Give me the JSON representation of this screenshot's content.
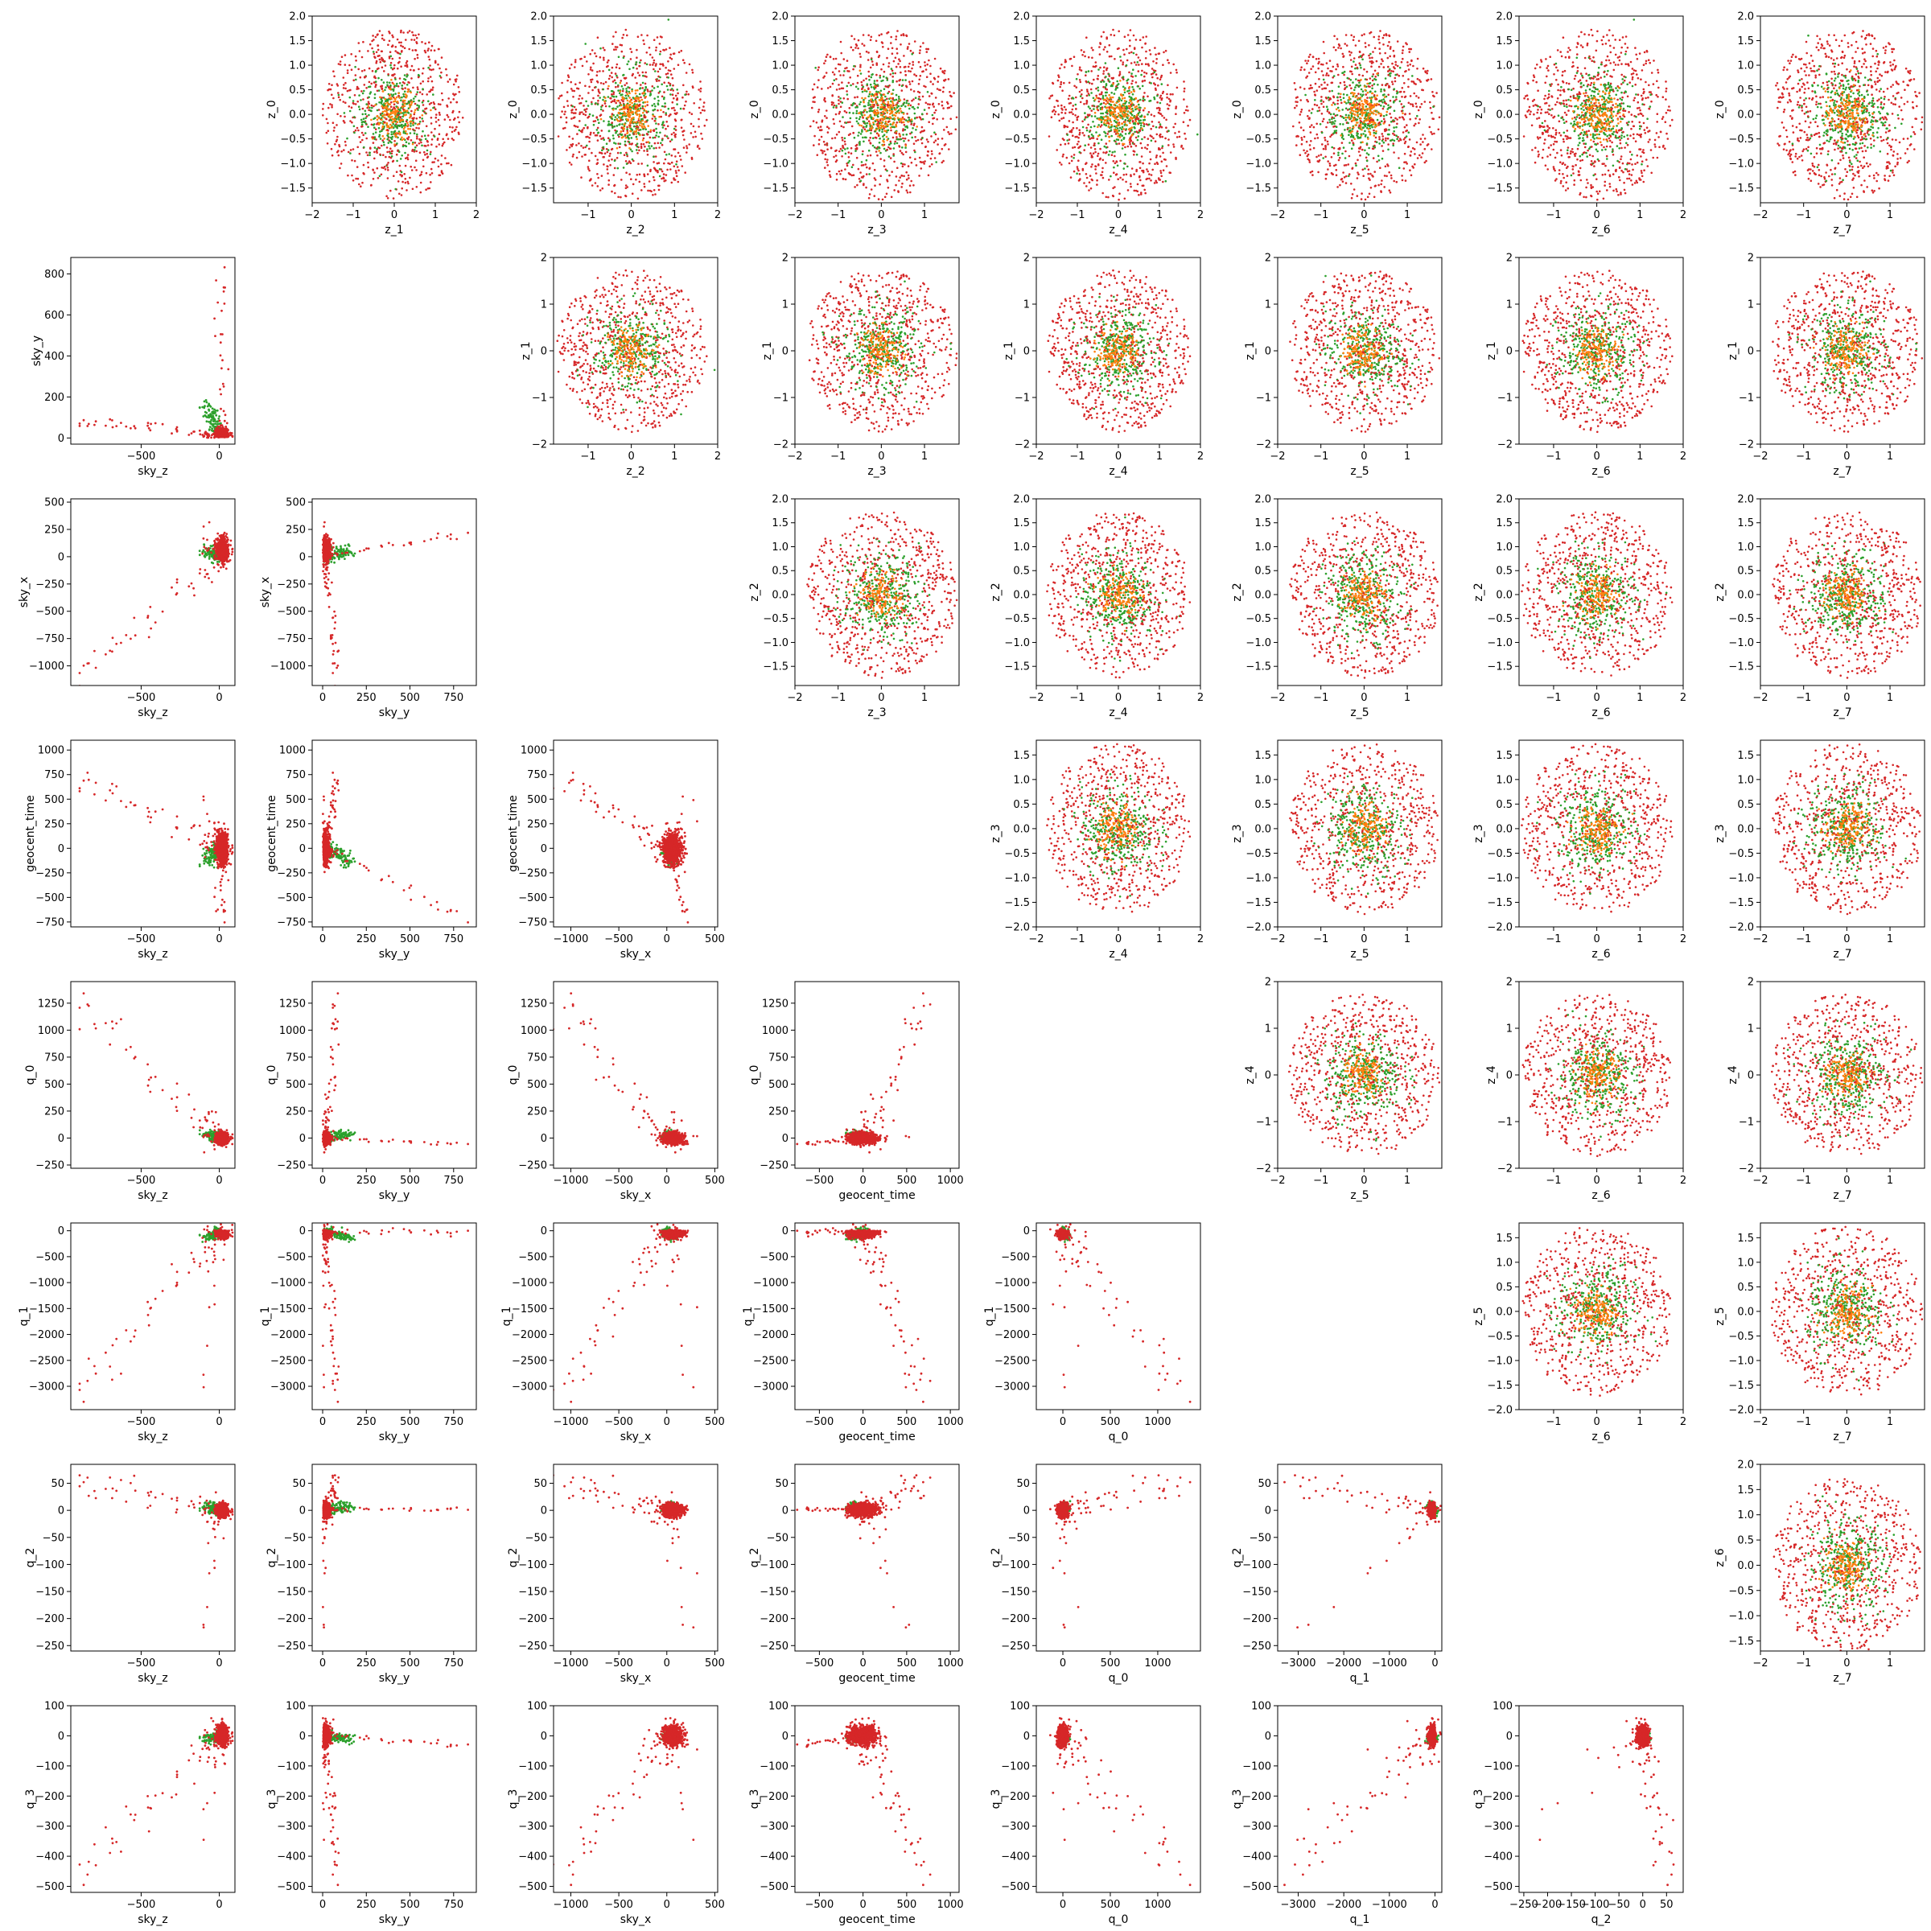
{
  "figure": {
    "title": "",
    "grid_size": 8,
    "layout": "Upper triangle: scatter of z_i (y) vs z_j (x). Lower triangle: scatter of parameter pairs. Diagonal empty."
  },
  "colors": {
    "red": "#d62728",
    "green": "#2ca02c",
    "orange": "#ff7f0e",
    "axis": "#000000"
  },
  "chart_data": {
    "type": "scatter",
    "upper_triangle": {
      "x_labels_by_col": [
        "",
        "z_1",
        "z_2",
        "z_3",
        "z_4",
        "z_5",
        "z_6",
        "z_7"
      ],
      "y_labels_by_row": [
        "z_0",
        "z_1",
        "z_2",
        "z_3",
        "z_4",
        "z_5",
        "z_6"
      ],
      "series": [
        {
          "color": "red",
          "distribution": "gaussian",
          "mean": 0,
          "std": 0.6
        },
        {
          "color": "green",
          "distribution": "gaussian",
          "mean": 0,
          "std": 0.45
        },
        {
          "color": "orange",
          "distribution": "gaussian",
          "mean": 0,
          "std": 0.25
        }
      ],
      "panels": [
        {
          "row": 0,
          "col": 1,
          "xlabel": "z_1",
          "ylabel": "z_0",
          "xlim": [
            -2.0,
            2.0
          ],
          "ylim": [
            -1.8,
            2.0
          ],
          "xticks": [
            -2,
            -1,
            0,
            1,
            2
          ],
          "yticks": [
            -1.5,
            -1.0,
            -0.5,
            0.0,
            0.5,
            1.0,
            1.5,
            2.0
          ]
        },
        {
          "row": 0,
          "col": 2,
          "xlabel": "z_2",
          "ylabel": "z_0",
          "xlim": [
            -1.8,
            2.0
          ],
          "ylim": [
            -1.8,
            2.0
          ],
          "xticks": [
            -1,
            0,
            1,
            2
          ],
          "yticks": [
            -1.5,
            -1.0,
            -0.5,
            0.0,
            0.5,
            1.0,
            1.5,
            2.0
          ]
        },
        {
          "row": 0,
          "col": 3,
          "xlabel": "z_3",
          "ylabel": "z_0",
          "xlim": [
            -2.0,
            1.8
          ],
          "ylim": [
            -1.8,
            2.0
          ],
          "xticks": [
            -2,
            -1,
            0,
            1
          ],
          "yticks": [
            -1.5,
            -1.0,
            -0.5,
            0.0,
            0.5,
            1.0,
            1.5,
            2.0
          ]
        },
        {
          "row": 0,
          "col": 4,
          "xlabel": "z_4",
          "ylabel": "z_0",
          "xlim": [
            -2.0,
            2.0
          ],
          "ylim": [
            -1.8,
            2.0
          ],
          "xticks": [
            -2,
            -1,
            0,
            1,
            2
          ],
          "yticks": [
            -1.5,
            -1.0,
            -0.5,
            0.0,
            0.5,
            1.0,
            1.5,
            2.0
          ]
        },
        {
          "row": 0,
          "col": 5,
          "xlabel": "z_5",
          "ylabel": "z_0",
          "xlim": [
            -2.0,
            1.8
          ],
          "ylim": [
            -1.8,
            2.0
          ],
          "xticks": [
            -2,
            -1,
            0,
            1
          ],
          "yticks": [
            -1.5,
            -1.0,
            -0.5,
            0.0,
            0.5,
            1.0,
            1.5,
            2.0
          ]
        },
        {
          "row": 0,
          "col": 6,
          "xlabel": "z_6",
          "ylabel": "z_0",
          "xlim": [
            -1.8,
            2.0
          ],
          "ylim": [
            -1.8,
            2.0
          ],
          "xticks": [
            -1,
            0,
            1,
            2
          ],
          "yticks": [
            -1.5,
            -1.0,
            -0.5,
            0.0,
            0.5,
            1.0,
            1.5,
            2.0
          ]
        },
        {
          "row": 0,
          "col": 7,
          "xlabel": "z_7",
          "ylabel": "z_0",
          "xlim": [
            -2.0,
            1.8
          ],
          "ylim": [
            -1.8,
            2.0
          ],
          "xticks": [
            -2,
            -1,
            0,
            1
          ],
          "yticks": [
            -1.5,
            -1.0,
            -0.5,
            0.0,
            0.5,
            1.0,
            1.5,
            2.0
          ]
        },
        {
          "row": 1,
          "col": 2,
          "xlabel": "z_2",
          "ylabel": "z_1",
          "xlim": [
            -1.8,
            2.0
          ],
          "ylim": [
            -2.0,
            2.0
          ],
          "xticks": [
            -1,
            0,
            1,
            2
          ],
          "yticks": [
            -2,
            -1,
            0,
            1,
            2
          ]
        },
        {
          "row": 1,
          "col": 3,
          "xlabel": "z_3",
          "ylabel": "z_1",
          "xlim": [
            -2.0,
            1.8
          ],
          "ylim": [
            -2.0,
            2.0
          ],
          "xticks": [
            -2,
            -1,
            0,
            1
          ],
          "yticks": [
            -2,
            -1,
            0,
            1,
            2
          ]
        },
        {
          "row": 1,
          "col": 4,
          "xlabel": "z_4",
          "ylabel": "z_1",
          "xlim": [
            -2.0,
            2.0
          ],
          "ylim": [
            -2.0,
            2.0
          ],
          "xticks": [
            -2,
            -1,
            0,
            1,
            2
          ],
          "yticks": [
            -2,
            -1,
            0,
            1,
            2
          ]
        },
        {
          "row": 1,
          "col": 5,
          "xlabel": "z_5",
          "ylabel": "z_1",
          "xlim": [
            -2.0,
            1.8
          ],
          "ylim": [
            -2.0,
            2.0
          ],
          "xticks": [
            -2,
            -1,
            0,
            1
          ],
          "yticks": [
            -2,
            -1,
            0,
            1,
            2
          ]
        },
        {
          "row": 1,
          "col": 6,
          "xlabel": "z_6",
          "ylabel": "z_1",
          "xlim": [
            -1.8,
            2.0
          ],
          "ylim": [
            -2.0,
            2.0
          ],
          "xticks": [
            -1,
            0,
            1,
            2
          ],
          "yticks": [
            -2,
            -1,
            0,
            1,
            2
          ]
        },
        {
          "row": 1,
          "col": 7,
          "xlabel": "z_7",
          "ylabel": "z_1",
          "xlim": [
            -2.0,
            1.8
          ],
          "ylim": [
            -2.0,
            2.0
          ],
          "xticks": [
            -2,
            -1,
            0,
            1
          ],
          "yticks": [
            -2,
            -1,
            0,
            1,
            2
          ]
        },
        {
          "row": 2,
          "col": 3,
          "xlabel": "z_3",
          "ylabel": "z_2",
          "xlim": [
            -2.0,
            1.8
          ],
          "ylim": [
            -1.9,
            2.0
          ],
          "xticks": [
            -2,
            -1,
            0,
            1
          ],
          "yticks": [
            -1.5,
            -1.0,
            -0.5,
            0.0,
            0.5,
            1.0,
            1.5,
            2.0
          ]
        },
        {
          "row": 2,
          "col": 4,
          "xlabel": "z_4",
          "ylabel": "z_2",
          "xlim": [
            -2.0,
            2.0
          ],
          "ylim": [
            -1.9,
            2.0
          ],
          "xticks": [
            -2,
            -1,
            0,
            1,
            2
          ],
          "yticks": [
            -1.5,
            -1.0,
            -0.5,
            0.0,
            0.5,
            1.0,
            1.5,
            2.0
          ]
        },
        {
          "row": 2,
          "col": 5,
          "xlabel": "z_5",
          "ylabel": "z_2",
          "xlim": [
            -2.0,
            1.8
          ],
          "ylim": [
            -1.9,
            2.0
          ],
          "xticks": [
            -2,
            -1,
            0,
            1
          ],
          "yticks": [
            -1.5,
            -1.0,
            -0.5,
            0.0,
            0.5,
            1.0,
            1.5,
            2.0
          ]
        },
        {
          "row": 2,
          "col": 6,
          "xlabel": "z_6",
          "ylabel": "z_2",
          "xlim": [
            -1.8,
            2.0
          ],
          "ylim": [
            -1.9,
            2.0
          ],
          "xticks": [
            -1,
            0,
            1,
            2
          ],
          "yticks": [
            -1.5,
            -1.0,
            -0.5,
            0.0,
            0.5,
            1.0,
            1.5,
            2.0
          ]
        },
        {
          "row": 2,
          "col": 7,
          "xlabel": "z_7",
          "ylabel": "z_2",
          "xlim": [
            -2.0,
            1.8
          ],
          "ylim": [
            -1.9,
            2.0
          ],
          "xticks": [
            -2,
            -1,
            0,
            1
          ],
          "yticks": [
            -1.5,
            -1.0,
            -0.5,
            0.0,
            0.5,
            1.0,
            1.5,
            2.0
          ]
        },
        {
          "row": 3,
          "col": 4,
          "xlabel": "z_4",
          "ylabel": "z_3",
          "xlim": [
            -2.0,
            2.0
          ],
          "ylim": [
            -2.0,
            1.8
          ],
          "xticks": [
            -2,
            -1,
            0,
            1,
            2
          ],
          "yticks": [
            -2.0,
            -1.5,
            -1.0,
            -0.5,
            0.0,
            0.5,
            1.0,
            1.5
          ]
        },
        {
          "row": 3,
          "col": 5,
          "xlabel": "z_5",
          "ylabel": "z_3",
          "xlim": [
            -2.0,
            1.8
          ],
          "ylim": [
            -2.0,
            1.8
          ],
          "xticks": [
            -2,
            -1,
            0,
            1
          ],
          "yticks": [
            -2.0,
            -1.5,
            -1.0,
            -0.5,
            0.0,
            0.5,
            1.0,
            1.5
          ]
        },
        {
          "row": 3,
          "col": 6,
          "xlabel": "z_6",
          "ylabel": "z_3",
          "xlim": [
            -1.8,
            2.0
          ],
          "ylim": [
            -2.0,
            1.8
          ],
          "xticks": [
            -1,
            0,
            1,
            2
          ],
          "yticks": [
            -2.0,
            -1.5,
            -1.0,
            -0.5,
            0.0,
            0.5,
            1.0,
            1.5
          ]
        },
        {
          "row": 3,
          "col": 7,
          "xlabel": "z_7",
          "ylabel": "z_3",
          "xlim": [
            -2.0,
            1.8
          ],
          "ylim": [
            -2.0,
            1.8
          ],
          "xticks": [
            -2,
            -1,
            0,
            1
          ],
          "yticks": [
            -2.0,
            -1.5,
            -1.0,
            -0.5,
            0.0,
            0.5,
            1.0,
            1.5
          ]
        },
        {
          "row": 4,
          "col": 5,
          "xlabel": "z_5",
          "ylabel": "z_4",
          "xlim": [
            -2.0,
            1.8
          ],
          "ylim": [
            -2.0,
            2.0
          ],
          "xticks": [
            -2,
            -1,
            0,
            1
          ],
          "yticks": [
            -2,
            -1,
            0,
            1,
            2
          ]
        },
        {
          "row": 4,
          "col": 6,
          "xlabel": "z_6",
          "ylabel": "z_4",
          "xlim": [
            -1.8,
            2.0
          ],
          "ylim": [
            -2.0,
            2.0
          ],
          "xticks": [
            -1,
            0,
            1,
            2
          ],
          "yticks": [
            -2,
            -1,
            0,
            1,
            2
          ]
        },
        {
          "row": 4,
          "col": 7,
          "xlabel": "z_7",
          "ylabel": "z_4",
          "xlim": [
            -2.0,
            1.8
          ],
          "ylim": [
            -2.0,
            2.0
          ],
          "xticks": [
            -2,
            -1,
            0,
            1
          ],
          "yticks": [
            -2,
            -1,
            0,
            1,
            2
          ]
        },
        {
          "row": 5,
          "col": 6,
          "xlabel": "z_6",
          "ylabel": "z_5",
          "xlim": [
            -1.8,
            2.0
          ],
          "ylim": [
            -2.0,
            1.8
          ],
          "xticks": [
            -1,
            0,
            1,
            2
          ],
          "yticks": [
            -2.0,
            -1.5,
            -1.0,
            -0.5,
            0.0,
            0.5,
            1.0,
            1.5
          ]
        },
        {
          "row": 5,
          "col": 7,
          "xlabel": "z_7",
          "ylabel": "z_5",
          "xlim": [
            -2.0,
            1.8
          ],
          "ylim": [
            -2.0,
            1.8
          ],
          "xticks": [
            -2,
            -1,
            0,
            1
          ],
          "yticks": [
            -2.0,
            -1.5,
            -1.0,
            -0.5,
            0.0,
            0.5,
            1.0,
            1.5
          ]
        },
        {
          "row": 6,
          "col": 7,
          "xlabel": "z_7",
          "ylabel": "z_6",
          "xlim": [
            -2.0,
            1.8
          ],
          "ylim": [
            -1.7,
            2.0
          ],
          "xticks": [
            -2,
            -1,
            0,
            1
          ],
          "yticks": [
            -1.5,
            -1.0,
            -0.5,
            0.0,
            0.5,
            1.0,
            1.5,
            2.0
          ]
        }
      ]
    },
    "lower_triangle": {
      "params": [
        "sky_z",
        "sky_y",
        "sky_x",
        "geocent_time",
        "q_0",
        "q_1",
        "q_2",
        "q_3"
      ],
      "param_ranges": {
        "sky_z": {
          "lim": [
            -950,
            100
          ],
          "ticks": [
            -500,
            0
          ]
        },
        "sky_y": {
          "lim": [
            -60,
            880
          ],
          "ticks": [
            0,
            250,
            500,
            750
          ]
        },
        "sky_x": {
          "lim": [
            -1180,
            530
          ],
          "ticks": [
            -1000,
            -500,
            0,
            500
          ]
        },
        "geocent_time": {
          "lim": [
            -780,
            1100
          ],
          "ticks": [
            -500,
            0,
            500,
            1000
          ]
        },
        "q_0": {
          "lim": [
            -280,
            1450
          ],
          "ticks": [
            0,
            500,
            1000
          ]
        },
        "q_1": {
          "lim": [
            -3450,
            150
          ],
          "ticks": [
            -3000,
            -2000,
            -1000,
            0
          ]
        },
        "q_2": {
          "lim": [
            -260,
            85
          ],
          "ticks": [
            -250,
            -200,
            -150,
            -100,
            -50,
            0,
            50
          ]
        },
        "q_3": {
          "lim": [
            -520,
            100
          ],
          "ticks": [
            -500,
            -400,
            -300,
            -200,
            -100,
            0,
            100
          ]
        }
      },
      "y_param_ranges": {
        "sky_y": {
          "lim": [
            -30,
            880
          ],
          "ticks": [
            0,
            200,
            400,
            600,
            800
          ]
        },
        "sky_x": {
          "lim": [
            -1180,
            530
          ],
          "ticks": [
            -1000,
            -750,
            -500,
            -250,
            0,
            250,
            500
          ]
        },
        "geocent_time": {
          "lim": [
            -800,
            1100
          ],
          "ticks": [
            -750,
            -500,
            -250,
            0,
            250,
            500,
            750,
            1000
          ]
        },
        "q_0": {
          "lim": [
            -280,
            1450
          ],
          "ticks": [
            -250,
            0,
            250,
            500,
            750,
            1000,
            1250
          ]
        },
        "q_1": {
          "lim": [
            -3450,
            150
          ],
          "ticks": [
            -3000,
            -2500,
            -2000,
            -1500,
            -1000,
            -500,
            0
          ]
        },
        "q_2": {
          "lim": [
            -260,
            85
          ],
          "ticks": [
            -250,
            -200,
            -150,
            -100,
            -50,
            0,
            50
          ]
        },
        "q_3": {
          "lim": [
            -520,
            100
          ],
          "ticks": [
            -500,
            -400,
            -300,
            -200,
            -100,
            0,
            100
          ]
        }
      },
      "series": [
        {
          "color": "red",
          "description": "tailed spread along linear relation plus dense cluster near origin"
        },
        {
          "color": "green",
          "description": "small spread overlapping cluster"
        }
      ],
      "panels_shape_hint": "Each lower panel (row r, col c with r>c) plots y=params[r] vs x=params[c]; a dense cluster near 0 with long tails following roughly linear relations."
    }
  }
}
